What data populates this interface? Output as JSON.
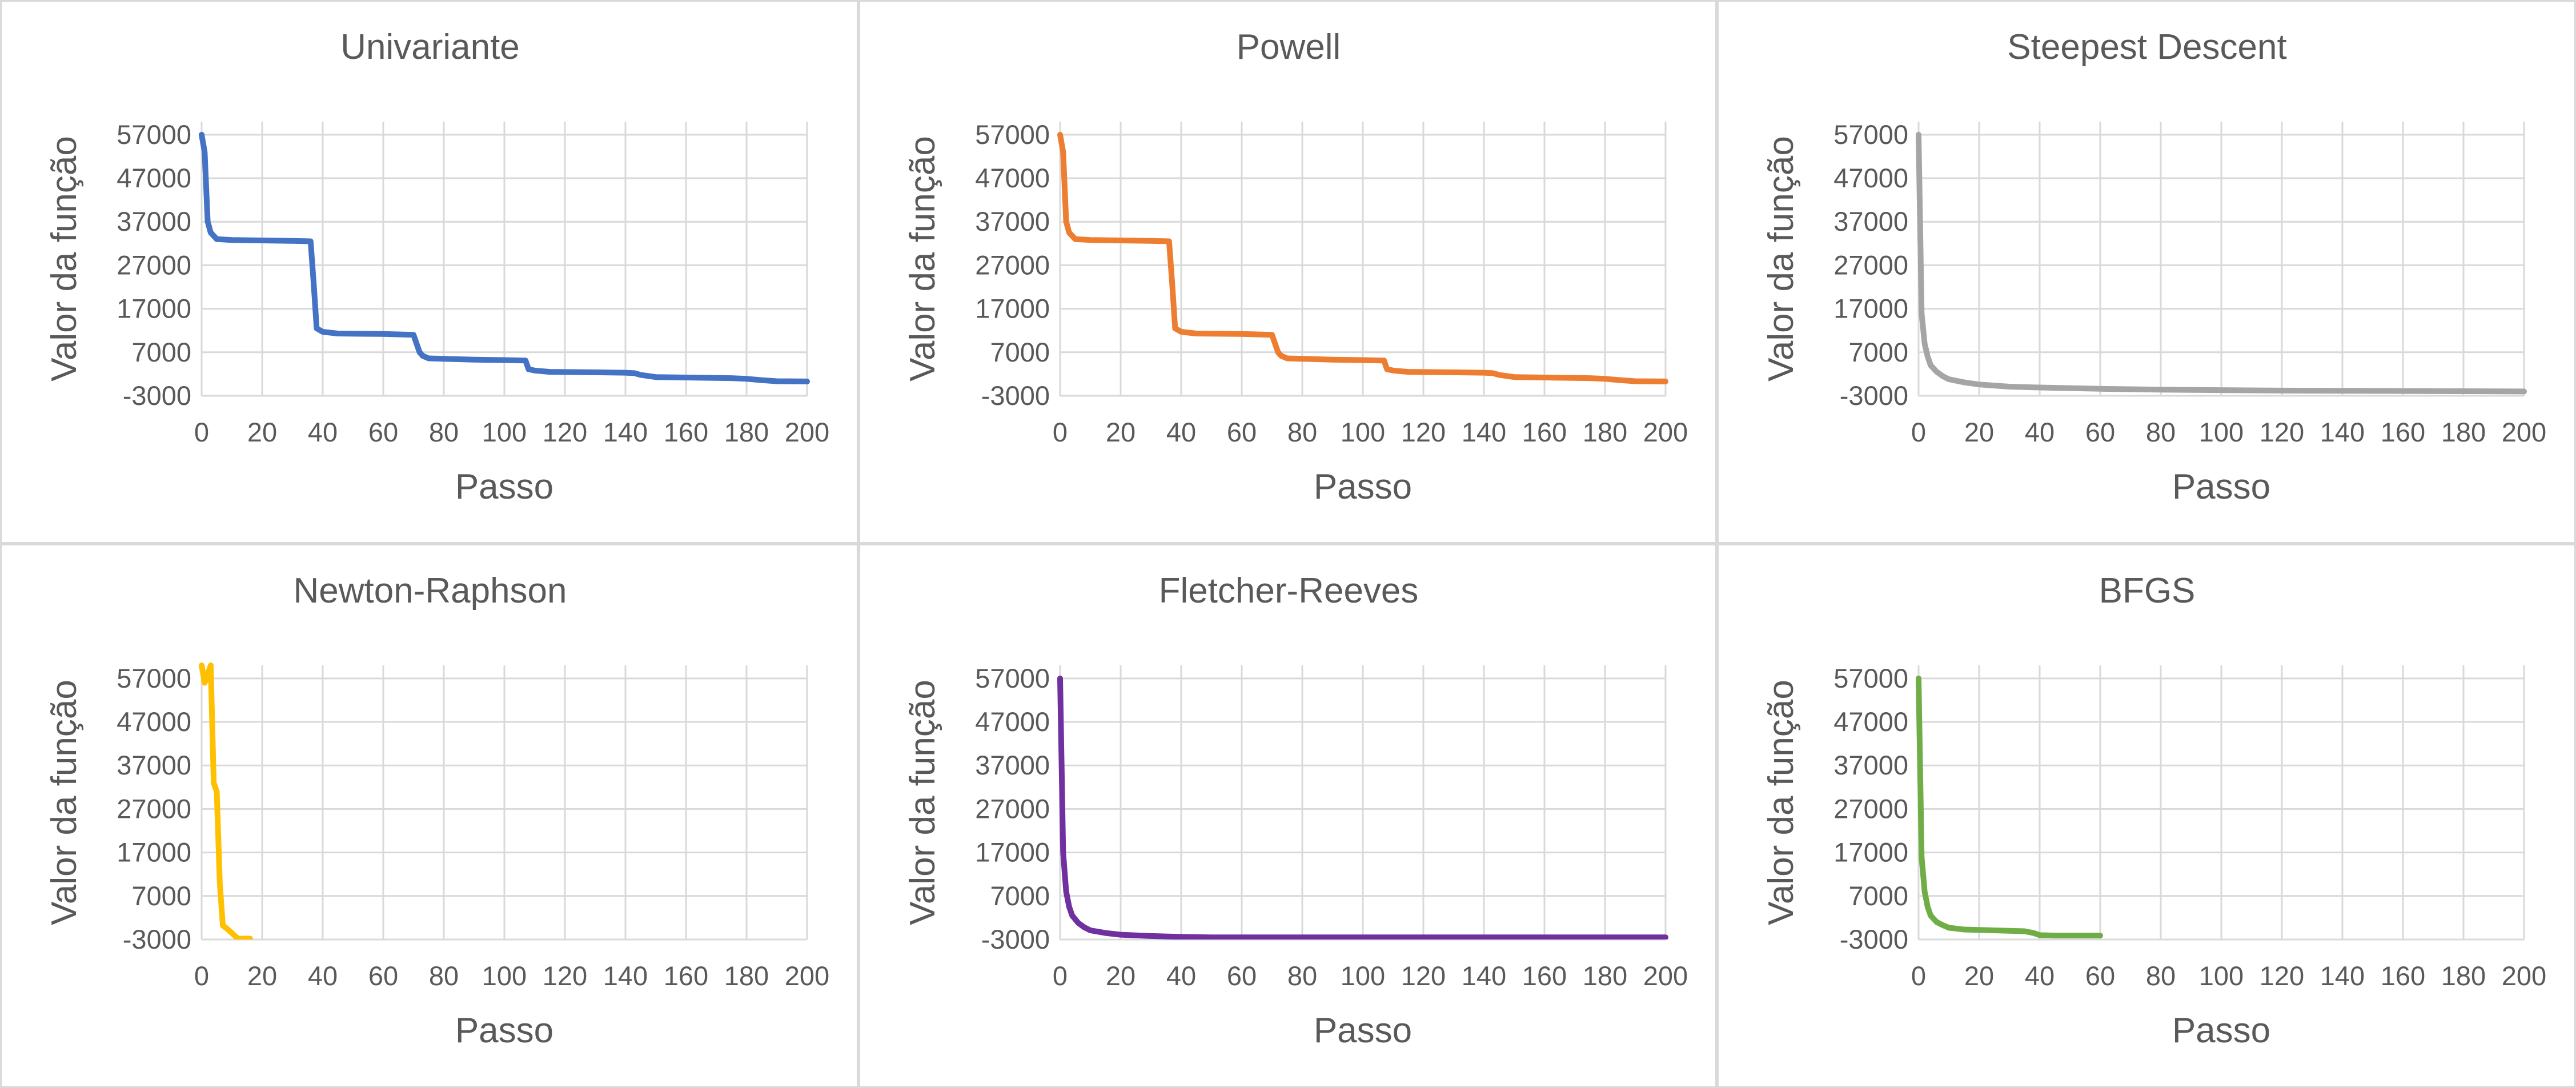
{
  "charts": [
    {
      "type": "line",
      "title": "Univariante",
      "xlabel": "Passo",
      "ylabel": "Valor da função",
      "color": "#4472C4",
      "xlim": [
        0,
        200
      ],
      "ylim": [
        -3000,
        60000
      ],
      "xticks": [
        0,
        20,
        40,
        60,
        80,
        100,
        120,
        140,
        160,
        180,
        200
      ],
      "yticks": [
        -3000,
        7000,
        17000,
        27000,
        37000,
        47000,
        57000
      ],
      "x": [
        0,
        1,
        2,
        3,
        5,
        10,
        20,
        30,
        36,
        37,
        38,
        40,
        45,
        60,
        70,
        72,
        73,
        75,
        80,
        90,
        100,
        107,
        108,
        110,
        115,
        130,
        140,
        143,
        145,
        150,
        160,
        170,
        175,
        180,
        185,
        190,
        200
      ],
      "y": [
        57000,
        53000,
        37000,
        34500,
        33000,
        32800,
        32700,
        32600,
        32500,
        23000,
        12500,
        11700,
        11300,
        11200,
        11000,
        7000,
        6200,
        5600,
        5500,
        5300,
        5200,
        5100,
        3100,
        2800,
        2500,
        2400,
        2300,
        2200,
        1800,
        1300,
        1200,
        1100,
        1050,
        900,
        600,
        350,
        300
      ]
    },
    {
      "type": "line",
      "title": "Powell",
      "xlabel": "Passo",
      "ylabel": "Valor da função",
      "color": "#ED7D31",
      "xlim": [
        0,
        200
      ],
      "ylim": [
        -3000,
        60000
      ],
      "xticks": [
        0,
        20,
        40,
        60,
        80,
        100,
        120,
        140,
        160,
        180,
        200
      ],
      "yticks": [
        -3000,
        7000,
        17000,
        27000,
        37000,
        47000,
        57000
      ],
      "x": [
        0,
        1,
        2,
        3,
        5,
        10,
        20,
        30,
        36,
        37,
        38,
        40,
        45,
        60,
        70,
        72,
        73,
        75,
        80,
        90,
        100,
        107,
        108,
        110,
        115,
        130,
        140,
        143,
        145,
        150,
        160,
        170,
        175,
        180,
        185,
        190,
        200
      ],
      "y": [
        57000,
        53000,
        37000,
        34500,
        33000,
        32800,
        32700,
        32600,
        32500,
        23000,
        12500,
        11700,
        11300,
        11200,
        11000,
        7000,
        6200,
        5600,
        5500,
        5300,
        5200,
        5100,
        3100,
        2800,
        2500,
        2400,
        2300,
        2200,
        1800,
        1300,
        1200,
        1100,
        1050,
        900,
        600,
        350,
        300
      ]
    },
    {
      "type": "line",
      "title": "Steepest Descent",
      "xlabel": "Passo",
      "ylabel": "Valor da função",
      "color": "#A5A5A5",
      "xlim": [
        0,
        200
      ],
      "ylim": [
        -3000,
        60000
      ],
      "xticks": [
        0,
        20,
        40,
        60,
        80,
        100,
        120,
        140,
        160,
        180,
        200
      ],
      "yticks": [
        -3000,
        7000,
        17000,
        27000,
        37000,
        47000,
        57000
      ],
      "x": [
        0,
        1,
        2,
        3,
        4,
        6,
        8,
        10,
        15,
        20,
        30,
        40,
        60,
        80,
        100,
        120,
        140,
        160,
        180,
        200
      ],
      "y": [
        57000,
        16000,
        9000,
        6000,
        4000,
        2500,
        1500,
        800,
        100,
        -400,
        -900,
        -1100,
        -1400,
        -1600,
        -1700,
        -1800,
        -1850,
        -1900,
        -1950,
        -2000
      ]
    },
    {
      "type": "line",
      "title": "Newton-Raphson",
      "xlabel": "Passo",
      "ylabel": "Valor da função",
      "color": "#FFC000",
      "xlim": [
        0,
        200
      ],
      "ylim": [
        -3000,
        60000
      ],
      "xticks": [
        0,
        20,
        40,
        60,
        80,
        100,
        120,
        140,
        160,
        180,
        200
      ],
      "yticks": [
        -3000,
        7000,
        17000,
        27000,
        37000,
        47000,
        57000
      ],
      "x": [
        0,
        1,
        3,
        4,
        5,
        6,
        7,
        8,
        10,
        12,
        16
      ],
      "y": [
        60000,
        56000,
        60000,
        33000,
        31000,
        10000,
        200,
        -300,
        -1500,
        -2800,
        -2800
      ]
    },
    {
      "type": "line",
      "title": "Fletcher-Reeves",
      "xlabel": "Passo",
      "ylabel": "Valor da função",
      "color": "#7030A0",
      "xlim": [
        0,
        200
      ],
      "ylim": [
        -3000,
        60000
      ],
      "xticks": [
        0,
        20,
        40,
        60,
        80,
        100,
        120,
        140,
        160,
        180,
        200
      ],
      "yticks": [
        -3000,
        7000,
        17000,
        27000,
        37000,
        47000,
        57000
      ],
      "x": [
        0,
        1,
        2,
        3,
        4,
        6,
        8,
        10,
        15,
        20,
        30,
        40,
        50,
        100,
        150,
        200
      ],
      "y": [
        57000,
        17000,
        8000,
        4500,
        2500,
        800,
        -200,
        -900,
        -1500,
        -1900,
        -2200,
        -2400,
        -2500,
        -2500,
        -2500,
        -2500
      ]
    },
    {
      "type": "line",
      "title": "BFGS",
      "xlabel": "Passo",
      "ylabel": "Valor da função",
      "color": "#70AD47",
      "xlim": [
        0,
        200
      ],
      "ylim": [
        -3000,
        60000
      ],
      "xticks": [
        0,
        20,
        40,
        60,
        80,
        100,
        120,
        140,
        160,
        180,
        200
      ],
      "yticks": [
        -3000,
        7000,
        17000,
        27000,
        37000,
        47000,
        57000
      ],
      "x": [
        0,
        1,
        2,
        3,
        4,
        6,
        8,
        10,
        15,
        20,
        25,
        30,
        35,
        38,
        40,
        45,
        50,
        60
      ],
      "y": [
        57000,
        16000,
        8000,
        4500,
        2500,
        1000,
        300,
        -300,
        -700,
        -800,
        -900,
        -1000,
        -1100,
        -1500,
        -2000,
        -2100,
        -2100,
        -2100
      ]
    }
  ]
}
